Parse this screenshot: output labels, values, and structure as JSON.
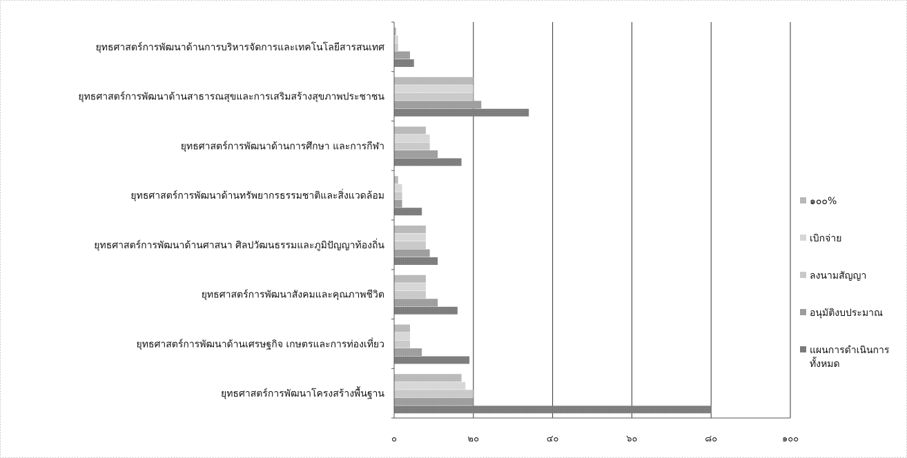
{
  "chart_data": {
    "type": "bar",
    "orientation": "horizontal",
    "title": "",
    "xlabel": "",
    "ylabel": "",
    "xlim": [
      0,
      100
    ],
    "x_ticks": [
      0,
      20,
      40,
      60,
      80,
      100
    ],
    "x_tick_labels": [
      "๐",
      "๒๐",
      "๔๐",
      "๖๐",
      "๘๐",
      "๑๐๐"
    ],
    "grid": "vertical",
    "legend_position": "right",
    "categories": [
      "ยุทธศาสตร์การพัฒนาด้านการบริหารจัดการและเทคโนโลยีสารสนเทศ",
      "ยุทธศาสตร์การพัฒนาด้านสาธารณสุขและการเสริมสร้างสุขภาพประชาชน",
      "ยุทธศาสตร์การพัฒนาด้านการศึกษา และการกีฬา",
      "ยุทธศาสตร์การพัฒนาด้านทรัพยากรธรรมชาติและสิ่งแวดล้อม",
      "ยุทธศาสตร์การพัฒนาด้านศาสนา ศิลปวัฒนธรรมและภูมิปัญญาท้องถิ่น",
      "ยุทธศาสตร์การพัฒนาสังคมและคุณภาพชีวิต",
      "ยุทธศาสตร์การพัฒนาด้านเศรษฐกิจ เกษตรและการท่องเที่ยว",
      "ยุทธศาสตร์การพัฒนาโครงสร้างพื้นฐาน"
    ],
    "series": [
      {
        "name": "๑๐๐%",
        "color": "#b8b8b8",
        "values": [
          0.5,
          20,
          8,
          1,
          8,
          8,
          4,
          17
        ]
      },
      {
        "name": "เบิกจ่าย",
        "color": "#d6d6d6",
        "values": [
          1,
          20,
          9,
          2,
          8,
          8,
          4,
          18
        ]
      },
      {
        "name": "ลงนามสัญญา",
        "color": "#c8c8c8",
        "values": [
          1,
          20,
          9,
          2,
          8,
          8,
          4,
          20
        ]
      },
      {
        "name": "อนุมัติงบประมาณ",
        "color": "#9c9c9c",
        "values": [
          4,
          22,
          11,
          2,
          9,
          11,
          7,
          20
        ]
      },
      {
        "name": "แผนการดำเนินการ ทั้งหมด",
        "color": "#7a7a7a",
        "values": [
          5,
          34,
          17,
          7,
          11,
          16,
          19,
          80
        ]
      }
    ]
  }
}
